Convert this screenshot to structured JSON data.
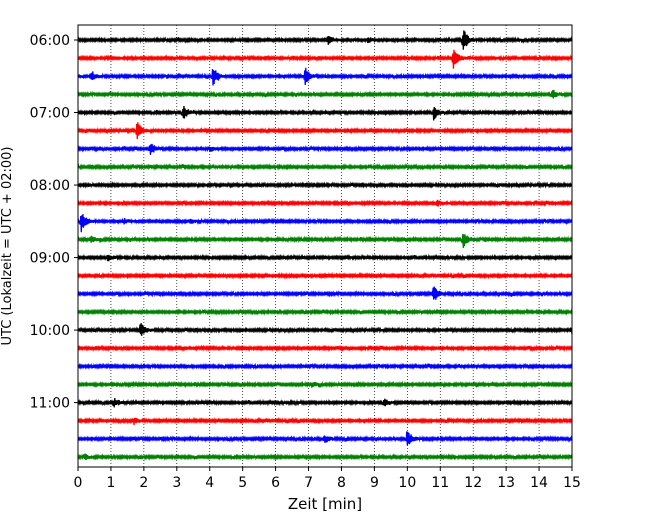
{
  "chart_data": {
    "type": "line",
    "subtype": "helicorder",
    "title": "",
    "xlabel": "Zeit  [min]",
    "ylabel": "UTC (Lokalzeit = UTC + 02:00)",
    "xlim": [
      0,
      15
    ],
    "x_ticks": [
      "0",
      "1",
      "2",
      "3",
      "4",
      "5",
      "6",
      "7",
      "8",
      "9",
      "10",
      "11",
      "12",
      "13",
      "14",
      "15"
    ],
    "y_ticks": [
      "06:00",
      "07:00",
      "08:00",
      "09:00",
      "10:00",
      "11:00"
    ],
    "grid": {
      "x": "dotted",
      "y": "none"
    },
    "trace_interval_min": 15,
    "trace_colors": [
      "#000000",
      "#ff0000",
      "#0000ff",
      "#008000"
    ],
    "traces": [
      {
        "start": "06:00",
        "events": [
          {
            "t": 11.7,
            "amp": 0.85
          },
          {
            "t": 7.6,
            "amp": 0.3
          },
          {
            "t": 8.8,
            "amp": 0.2
          }
        ]
      },
      {
        "start": "06:15",
        "events": [
          {
            "t": 11.4,
            "amp": 0.8
          }
        ]
      },
      {
        "start": "06:30",
        "events": [
          {
            "t": 0.4,
            "amp": 0.35
          },
          {
            "t": 4.1,
            "amp": 0.65
          },
          {
            "t": 6.9,
            "amp": 0.65
          }
        ]
      },
      {
        "start": "06:45",
        "events": [
          {
            "t": 14.4,
            "amp": 0.3
          }
        ]
      },
      {
        "start": "07:00",
        "events": [
          {
            "t": 3.2,
            "amp": 0.55
          },
          {
            "t": 10.8,
            "amp": 0.5
          }
        ]
      },
      {
        "start": "07:15",
        "events": [
          {
            "t": 1.8,
            "amp": 0.65
          }
        ]
      },
      {
        "start": "07:30",
        "events": [
          {
            "t": 2.2,
            "amp": 0.4
          },
          {
            "t": 4.0,
            "amp": 0.2
          }
        ]
      },
      {
        "start": "07:45",
        "events": []
      },
      {
        "start": "08:00",
        "events": []
      },
      {
        "start": "08:15",
        "events": [
          {
            "t": 10.9,
            "amp": 0.25
          }
        ]
      },
      {
        "start": "08:30",
        "events": [
          {
            "t": 0.1,
            "amp": 0.75
          },
          {
            "t": 1.4,
            "amp": 0.2
          },
          {
            "t": 3.4,
            "amp": 0.2
          }
        ]
      },
      {
        "start": "08:45",
        "events": [
          {
            "t": 0.4,
            "amp": 0.25
          },
          {
            "t": 11.7,
            "amp": 0.6
          }
        ]
      },
      {
        "start": "09:00",
        "events": [
          {
            "t": 0.9,
            "amp": 0.25
          }
        ]
      },
      {
        "start": "09:15",
        "events": []
      },
      {
        "start": "09:30",
        "events": [
          {
            "t": 10.8,
            "amp": 0.6
          }
        ]
      },
      {
        "start": "09:45",
        "events": []
      },
      {
        "start": "10:00",
        "events": [
          {
            "t": 1.9,
            "amp": 0.5
          },
          {
            "t": 15.0,
            "amp": 0.25
          }
        ]
      },
      {
        "start": "10:15",
        "events": []
      },
      {
        "start": "10:30",
        "events": []
      },
      {
        "start": "10:45",
        "events": [
          {
            "t": 7.1,
            "amp": 0.2
          }
        ]
      },
      {
        "start": "11:00",
        "events": [
          {
            "t": 1.1,
            "amp": 0.3
          },
          {
            "t": 9.3,
            "amp": 0.3
          }
        ]
      },
      {
        "start": "11:15",
        "events": [
          {
            "t": 1.7,
            "amp": 0.25
          }
        ]
      },
      {
        "start": "11:30",
        "events": [
          {
            "t": 10.0,
            "amp": 0.7
          },
          {
            "t": 7.5,
            "amp": 0.3
          }
        ]
      },
      {
        "start": "11:45",
        "events": [
          {
            "t": 0.2,
            "amp": 0.2
          }
        ]
      }
    ]
  }
}
